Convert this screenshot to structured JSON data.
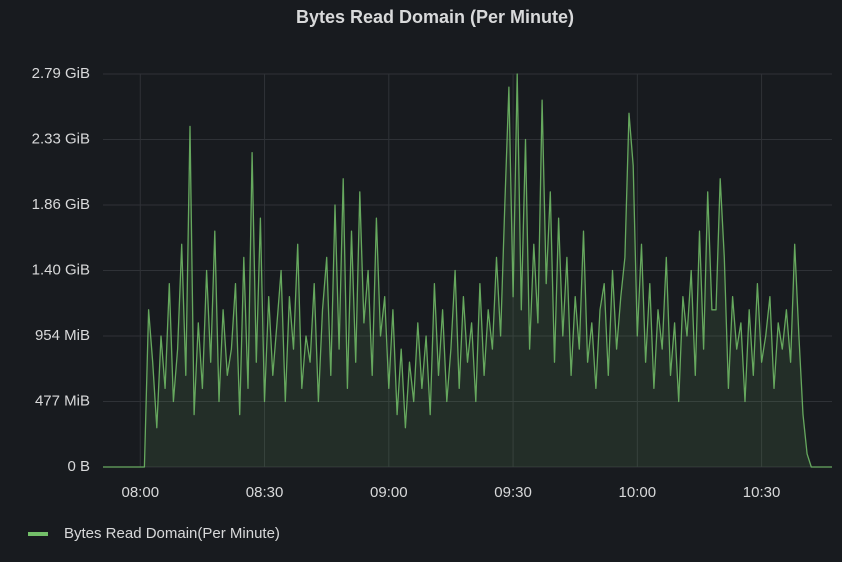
{
  "chart_data": {
    "type": "line",
    "title": "Bytes Read Domain (Per Minute)",
    "x": [
      471,
      472,
      473,
      474,
      475,
      476,
      477,
      478,
      479,
      480,
      481,
      482,
      483,
      484,
      485,
      486,
      487,
      488,
      489,
      490,
      491,
      492,
      493,
      494,
      495,
      496,
      497,
      498,
      499,
      500,
      501,
      502,
      503,
      504,
      505,
      506,
      507,
      508,
      509,
      510,
      511,
      512,
      513,
      514,
      515,
      516,
      517,
      518,
      519,
      520,
      521,
      522,
      523,
      524,
      525,
      526,
      527,
      528,
      529,
      530,
      531,
      532,
      533,
      534,
      535,
      536,
      537,
      538,
      539,
      540,
      541,
      542,
      543,
      544,
      545,
      546,
      547,
      548,
      549,
      550,
      551,
      552,
      553,
      554,
      555,
      556,
      557,
      558,
      559,
      560,
      561,
      562,
      563,
      564,
      565,
      566,
      567,
      568,
      569,
      570,
      571,
      572,
      573,
      574,
      575,
      576,
      577,
      578,
      579,
      580,
      581,
      582,
      583,
      584,
      585,
      586,
      587,
      588,
      589,
      590,
      591,
      592,
      593,
      594,
      595,
      596,
      597,
      598,
      599,
      600,
      601,
      602,
      603,
      604,
      605,
      606,
      607,
      608,
      609,
      610,
      611,
      612,
      613,
      614,
      615,
      616,
      617,
      618,
      619,
      620,
      621,
      622,
      623,
      624,
      625,
      626,
      627,
      628,
      629,
      630,
      631,
      632,
      633,
      634,
      635,
      636,
      637,
      638,
      639,
      640,
      641,
      642,
      643,
      644,
      645,
      646,
      647
    ],
    "series": [
      {
        "name": "Bytes Read Domain(Per Minute)",
        "color": "#73bf69",
        "values": [
          0,
          0,
          0,
          0,
          0,
          0,
          0,
          0,
          0,
          0,
          0,
          1200000000.0,
          800000000.0,
          300000000.0,
          1000000000.0,
          600000000.0,
          1400000000.0,
          500000000.0,
          900000000.0,
          1700000000.0,
          700000000.0,
          2600000000.0,
          400000000.0,
          1100000000.0,
          600000000.0,
          1500000000.0,
          800000000.0,
          1800000000.0,
          500000000.0,
          1200000000.0,
          700000000.0,
          900000000.0,
          1400000000.0,
          400000000.0,
          1600000000.0,
          600000000.0,
          2400000000.0,
          800000000.0,
          1900000000.0,
          500000000.0,
          1300000000.0,
          700000000.0,
          1100000000.0,
          1500000000.0,
          500000000.0,
          1300000000.0,
          900000000.0,
          1700000000.0,
          600000000.0,
          1000000000.0,
          800000000.0,
          1400000000.0,
          500000000.0,
          1200000000.0,
          1600000000.0,
          700000000.0,
          2000000000.0,
          900000000.0,
          2200000000.0,
          600000000.0,
          1800000000.0,
          800000000.0,
          2100000000.0,
          1100000000.0,
          1500000000.0,
          700000000.0,
          1900000000.0,
          1000000000.0,
          1300000000.0,
          600000000.0,
          1200000000.0,
          400000000.0,
          900000000.0,
          300000000.0,
          800000000.0,
          500000000.0,
          1100000000.0,
          600000000.0,
          1000000000.0,
          400000000.0,
          1400000000.0,
          700000000.0,
          1200000000.0,
          500000000.0,
          900000000.0,
          1500000000.0,
          600000000.0,
          1300000000.0,
          800000000.0,
          1100000000.0,
          500000000.0,
          1400000000.0,
          700000000.0,
          1200000000.0,
          900000000.0,
          1600000000.0,
          1000000000.0,
          2000000000.0,
          2900000000.0,
          1300000000.0,
          3000000000.0,
          1200000000.0,
          2500000000.0,
          900000000.0,
          1700000000.0,
          1100000000.0,
          2800000000.0,
          1400000000.0,
          2100000000.0,
          800000000.0,
          1900000000.0,
          1000000000.0,
          1600000000.0,
          700000000.0,
          1300000000.0,
          900000000.0,
          1800000000.0,
          800000000.0,
          1100000000.0,
          600000000.0,
          1200000000.0,
          1400000000.0,
          700000000.0,
          1500000000.0,
          900000000.0,
          1300000000.0,
          1600000000.0,
          2700000000.0,
          2300000000.0,
          1000000000.0,
          1700000000.0,
          800000000.0,
          1400000000.0,
          600000000.0,
          1200000000.0,
          900000000.0,
          1600000000.0,
          700000000.0,
          1100000000.0,
          500000000.0,
          1300000000.0,
          1000000000.0,
          1500000000.0,
          700000000.0,
          1800000000.0,
          900000000.0,
          2100000000.0,
          1200000000.0,
          1200000000.0,
          2200000000.0,
          1600000000.0,
          600000000.0,
          1300000000.0,
          900000000.0,
          1100000000.0,
          500000000.0,
          1200000000.0,
          700000000.0,
          1400000000.0,
          800000000.0,
          1000000000.0,
          1300000000.0,
          600000000.0,
          1100000000.0,
          900000000.0,
          1200000000.0,
          800000000.0,
          1700000000.0,
          1000000000.0,
          400000000.0,
          100000000.0,
          0,
          0,
          0,
          0,
          0,
          0
        ]
      }
    ],
    "xlim": [
      471,
      647
    ],
    "xticks": [
      {
        "value": 480,
        "label": "08:00"
      },
      {
        "value": 510,
        "label": "08:30"
      },
      {
        "value": 540,
        "label": "09:00"
      },
      {
        "value": 570,
        "label": "09:30"
      },
      {
        "value": 600,
        "label": "10:00"
      },
      {
        "value": 630,
        "label": "10:30"
      }
    ],
    "ylim": [
      0,
      3000000000.0
    ],
    "yticks": [
      {
        "value": 0,
        "label": "0 B"
      },
      {
        "value": 500000000.0,
        "label": "477 MiB"
      },
      {
        "value": 1000000000.0,
        "label": "954 MiB"
      },
      {
        "value": 1500000000.0,
        "label": "1.40 GiB"
      },
      {
        "value": 2000000000.0,
        "label": "1.86 GiB"
      },
      {
        "value": 2500000000.0,
        "label": "2.33 GiB"
      },
      {
        "value": 3000000000.0,
        "label": "2.79 GiB"
      }
    ],
    "grid": true,
    "legend": "bottom-left"
  }
}
